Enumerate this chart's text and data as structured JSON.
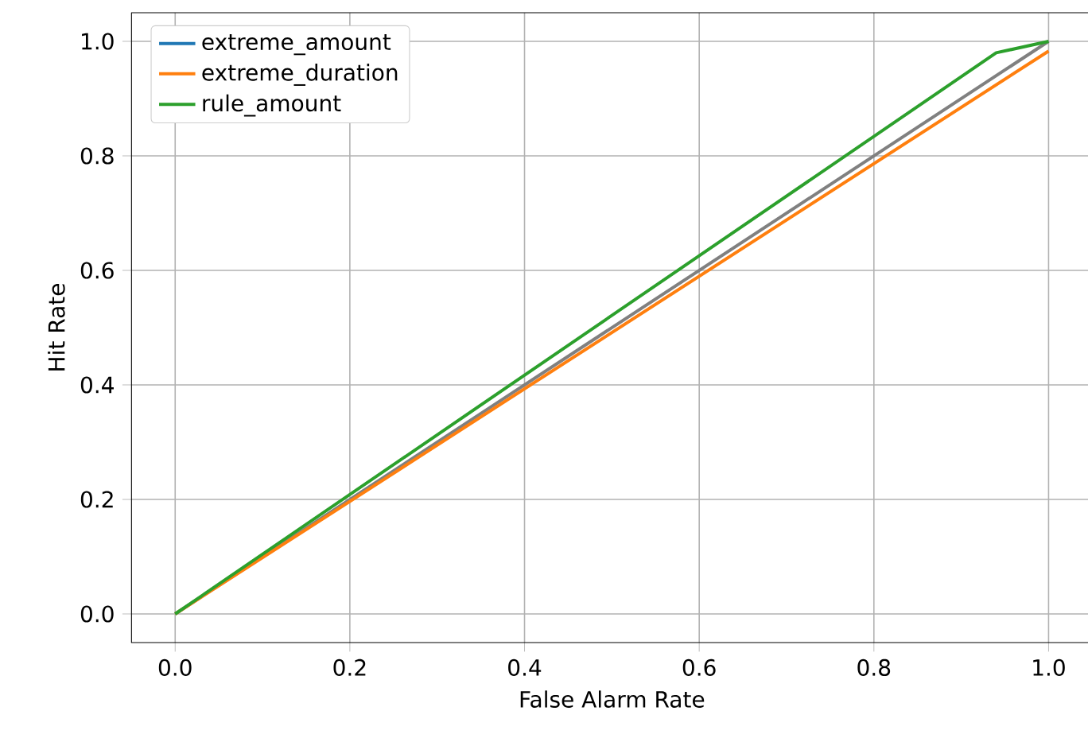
{
  "chart_data": {
    "type": "line",
    "xlabel": "False Alarm Rate",
    "ylabel": "Hit Rate",
    "xlim": [
      -0.05,
      1.05
    ],
    "ylim": [
      -0.05,
      1.05
    ],
    "xticks": [
      {
        "value": 0,
        "label": "0.0"
      },
      {
        "value": 0.2,
        "label": "0.2"
      },
      {
        "value": 0.4,
        "label": "0.4"
      },
      {
        "value": 0.6,
        "label": "0.6"
      },
      {
        "value": 0.8,
        "label": "0.8"
      },
      {
        "value": 1,
        "label": "1.0"
      }
    ],
    "yticks": [
      {
        "value": 0,
        "label": "0.0"
      },
      {
        "value": 0.2,
        "label": "0.2"
      },
      {
        "value": 0.4,
        "label": "0.4"
      },
      {
        "value": 0.6,
        "label": "0.6"
      },
      {
        "value": 0.8,
        "label": "0.8"
      },
      {
        "value": 1,
        "label": "1.0"
      }
    ],
    "grid": true,
    "legend": "top left",
    "series": [
      {
        "color": "#808080",
        "x": [
          0,
          1
        ],
        "values": [
          0,
          1
        ]
      },
      {
        "name": "extreme_amount",
        "color": "#1f77b4",
        "values": [
          null,
          null,
          null
        ]
      },
      {
        "name": "extreme_duration",
        "color": "#ff7f0e",
        "x": [
          0,
          1
        ],
        "values": [
          0,
          0.983
        ]
      },
      {
        "name": "rule_amount",
        "color": "#2ca02c",
        "x": [
          0,
          0.94,
          1
        ],
        "values": [
          0,
          0.98,
          1
        ]
      }
    ]
  }
}
